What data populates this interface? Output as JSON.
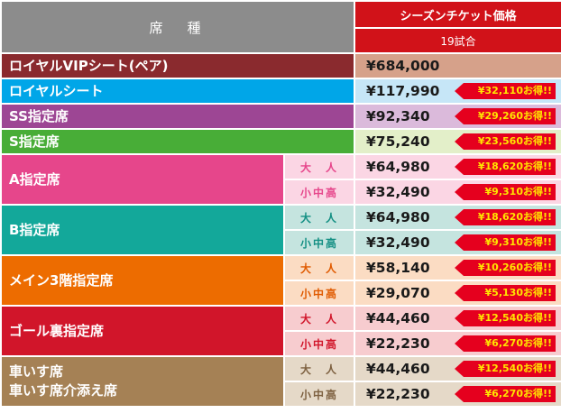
{
  "header": {
    "seat_label": "席　種",
    "price_label": "シーズンチケット価格",
    "games_label": "19試合"
  },
  "rows": [
    {
      "name": "ロイヤルVIPシート(ペア)",
      "price": "¥684,000",
      "badge": "",
      "name_bg": "#8a2a2e",
      "price_bg": "#d6a18a"
    },
    {
      "name": "ロイヤルシート",
      "price": "¥117,990",
      "badge": "¥32,110お得!!",
      "name_bg": "#00a6e8",
      "price_bg": "#c6e6f7"
    },
    {
      "name": "SS指定席",
      "price": "¥92,340",
      "badge": "¥29,260お得!!",
      "name_bg": "#9d4694",
      "price_bg": "#dbbadb"
    },
    {
      "name": "S指定席",
      "price": "¥75,240",
      "badge": "¥23,560お得!!",
      "name_bg": "#48ad37",
      "price_bg": "#e3efc9"
    }
  ],
  "groups": [
    {
      "name_lines": [
        "A指定席"
      ],
      "name_bg": "#e6468b",
      "sub_bg": "#fbd6e4",
      "sub_color": "#e6468b",
      "price_bg": "#fbd6e4",
      "subrows": [
        {
          "label": "大　人",
          "price": "¥64,980",
          "badge": "¥18,620お得!!"
        },
        {
          "label": "小中高",
          "price": "¥32,490",
          "badge": "¥9,310お得!!"
        }
      ]
    },
    {
      "name_lines": [
        "B指定席"
      ],
      "name_bg": "#13a89a",
      "sub_bg": "#c5e4df",
      "sub_color": "#138f83",
      "price_bg": "#c5e4df",
      "subrows": [
        {
          "label": "大　人",
          "price": "¥64,980",
          "badge": "¥18,620お得!!"
        },
        {
          "label": "小中高",
          "price": "¥32,490",
          "badge": "¥9,310お得!!"
        }
      ]
    },
    {
      "name_lines": [
        "メイン3階指定席"
      ],
      "name_bg": "#ed6c00",
      "sub_bg": "#fbdcc3",
      "sub_color": "#e05a00",
      "price_bg": "#fbdcc3",
      "subrows": [
        {
          "label": "大　人",
          "price": "¥58,140",
          "badge": "¥10,260お得!!"
        },
        {
          "label": "小中高",
          "price": "¥29,070",
          "badge": "¥5,130お得!!"
        }
      ]
    },
    {
      "name_lines": [
        "ゴール裏指定席"
      ],
      "name_bg": "#d1152a",
      "sub_bg": "#f7cccf",
      "sub_color": "#d1152a",
      "price_bg": "#f7cccf",
      "subrows": [
        {
          "label": "大　人",
          "price": "¥44,460",
          "badge": "¥12,540お得!!"
        },
        {
          "label": "小中高",
          "price": "¥22,230",
          "badge": "¥6,270お得!!"
        }
      ]
    },
    {
      "name_lines": [
        "車いす席",
        "車いす席介添え席"
      ],
      "name_bg": "#a58155",
      "sub_bg": "#e5d9c8",
      "sub_color": "#7d6040",
      "price_bg": "#e5d9c8",
      "subrows": [
        {
          "label": "大　人",
          "price": "¥44,460",
          "badge": "¥12,540お得!!"
        },
        {
          "label": "小中高",
          "price": "¥22,230",
          "badge": "¥6,270お得!!"
        }
      ]
    }
  ]
}
